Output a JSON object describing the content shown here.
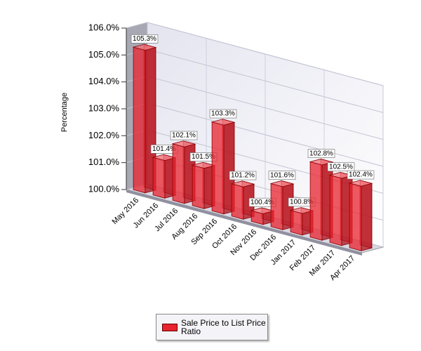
{
  "chart_data": {
    "type": "bar3d",
    "ylabel": "Percentage",
    "categories": [
      "May 2016",
      "Jun 2016",
      "Jul 2016",
      "Aug 2016",
      "Sep 2016",
      "Oct 2016",
      "Nov 2016",
      "Dec 2016",
      "Jan 2017",
      "Feb 2017",
      "Mar 2017",
      "Apr 2017"
    ],
    "series": [
      {
        "name": "Sale Price to List Price Ratio",
        "color": "#e8232e",
        "values": [
          105.3,
          101.4,
          102.1,
          101.5,
          103.3,
          101.2,
          100.4,
          101.6,
          100.8,
          102.8,
          102.5,
          102.4
        ],
        "value_labels": [
          "105.3%",
          "101.4%",
          "102.1%",
          "101.5%",
          "103.3%",
          "101.2%",
          "100.4%",
          "101.6%",
          "100.8%",
          "102.8%",
          "102.5%",
          "102.4%"
        ]
      }
    ],
    "ylim": [
      100,
      106
    ],
    "yticks": [
      {
        "value": 100,
        "label": "100.0%"
      },
      {
        "value": 101,
        "label": "101.0%"
      },
      {
        "value": 102,
        "label": "102.0%"
      },
      {
        "value": 103,
        "label": "103.0%"
      },
      {
        "value": 104,
        "label": "104.0%"
      },
      {
        "value": 105,
        "label": "105.0%"
      },
      {
        "value": 106,
        "label": "106.0%"
      }
    ],
    "grid": true,
    "legend": "bottom"
  }
}
